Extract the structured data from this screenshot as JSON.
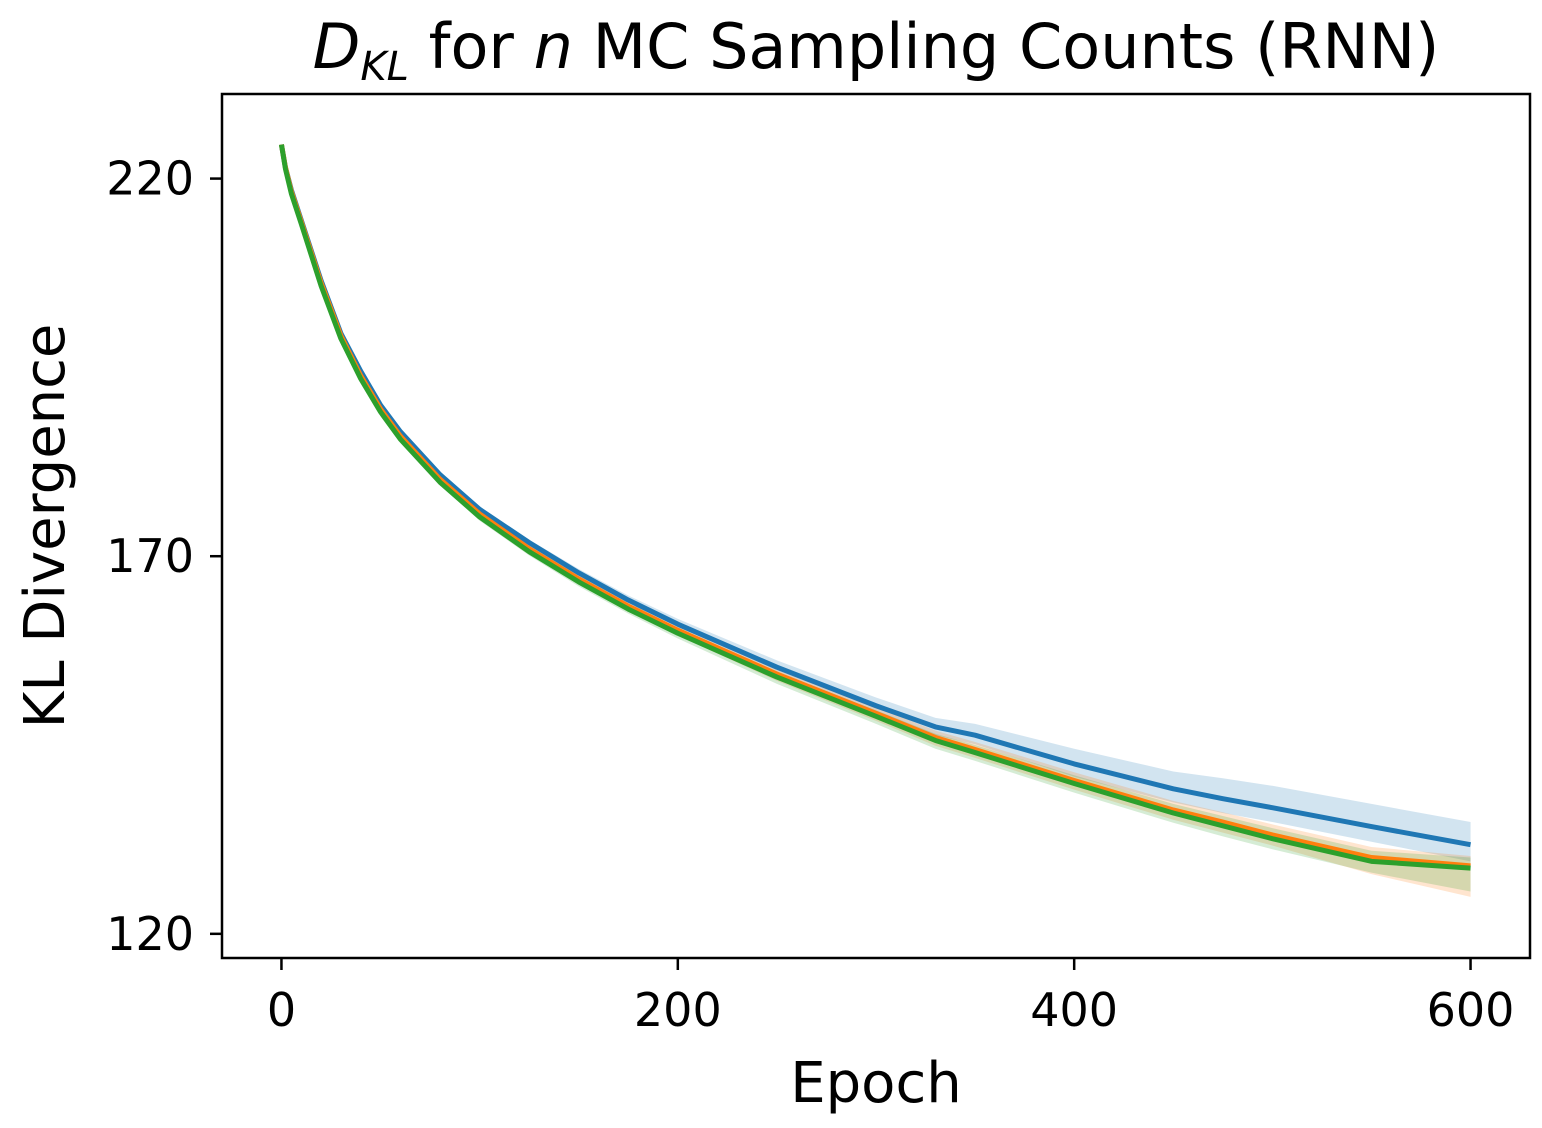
{
  "chart_data": {
    "type": "line",
    "title": {
      "d_symbol": "D",
      "d_subscript": "KL",
      "part_for": " for ",
      "n_symbol": "n",
      "part_rest": " MC Sampling Counts (RNN)"
    },
    "xlabel": "Epoch",
    "ylabel": "KL Divergence",
    "xlim": [
      -30,
      630
    ],
    "ylim": [
      116.8,
      231.2
    ],
    "xticks": [
      0,
      200,
      400,
      600
    ],
    "yticks": [
      120,
      170,
      220
    ],
    "grid": false,
    "legend": "none",
    "series": [
      {
        "color": "#1f77b4",
        "band_opacity": 0.2,
        "x": [
          0,
          2,
          5,
          10,
          20,
          30,
          40,
          50,
          60,
          80,
          100,
          125,
          150,
          175,
          200,
          250,
          300,
          330,
          350,
          400,
          450,
          475,
          500,
          550,
          600
        ],
        "y": [
          224.5,
          221.5,
          218.5,
          214.5,
          206.5,
          199.5,
          194.5,
          190.0,
          186.5,
          180.8,
          176.2,
          171.8,
          167.8,
          164.2,
          161.0,
          155.3,
          150.2,
          147.4,
          146.3,
          142.5,
          139.2,
          137.9,
          136.7,
          134.2,
          131.8
        ],
        "upper": [
          224.7,
          221.7,
          218.8,
          214.8,
          206.8,
          199.8,
          194.8,
          190.3,
          186.8,
          181.2,
          176.6,
          172.2,
          168.3,
          164.8,
          161.7,
          156.2,
          151.3,
          148.6,
          147.8,
          144.5,
          141.5,
          140.6,
          139.6,
          137.2,
          134.8
        ],
        "lower": [
          224.3,
          221.3,
          218.2,
          214.2,
          206.2,
          199.2,
          194.2,
          189.7,
          186.2,
          180.4,
          175.8,
          171.3,
          167.3,
          163.6,
          160.3,
          154.4,
          149.1,
          146.3,
          145.1,
          140.8,
          137.4,
          136.0,
          134.8,
          132.2,
          129.6
        ]
      },
      {
        "color": "#ff7f0e",
        "band_opacity": 0.2,
        "x": [
          0,
          2,
          5,
          10,
          20,
          30,
          40,
          50,
          60,
          80,
          100,
          125,
          150,
          175,
          200,
          250,
          300,
          330,
          350,
          400,
          450,
          475,
          500,
          550,
          600
        ],
        "y": [
          224.5,
          221.5,
          218.3,
          214.3,
          206.2,
          199.2,
          193.9,
          189.5,
          185.9,
          180.2,
          175.6,
          171.0,
          167.0,
          163.4,
          160.2,
          154.4,
          149.2,
          146.0,
          144.4,
          140.3,
          136.4,
          134.8,
          133.1,
          130.1,
          129.0
        ],
        "upper": [
          224.7,
          221.7,
          218.5,
          214.6,
          206.5,
          199.5,
          194.2,
          189.8,
          186.3,
          180.6,
          176.0,
          171.4,
          167.5,
          163.9,
          160.8,
          155.1,
          150.0,
          146.9,
          145.4,
          141.4,
          137.6,
          136.1,
          134.5,
          131.5,
          130.3
        ],
        "lower": [
          224.3,
          221.3,
          218.1,
          214.0,
          205.9,
          198.9,
          193.6,
          189.2,
          185.5,
          179.8,
          175.1,
          170.5,
          166.4,
          162.8,
          159.5,
          153.5,
          148.2,
          144.9,
          143.3,
          139.1,
          135.1,
          133.4,
          131.7,
          127.9,
          124.9
        ]
      },
      {
        "color": "#2ca02c",
        "band_opacity": 0.2,
        "x": [
          0,
          2,
          5,
          10,
          20,
          30,
          40,
          50,
          60,
          80,
          100,
          125,
          150,
          175,
          200,
          250,
          300,
          330,
          350,
          400,
          450,
          475,
          500,
          550,
          600
        ],
        "y": [
          224.5,
          221.3,
          218.0,
          214.0,
          205.8,
          198.8,
          193.5,
          189.1,
          185.5,
          179.8,
          175.2,
          170.6,
          166.6,
          163.0,
          159.8,
          154.0,
          148.8,
          145.6,
          144.0,
          139.9,
          136.0,
          134.3,
          132.6,
          129.6,
          128.7
        ],
        "upper": [
          224.7,
          221.5,
          218.2,
          214.3,
          206.1,
          199.1,
          193.8,
          189.4,
          185.9,
          180.2,
          175.6,
          171.0,
          167.1,
          163.5,
          160.4,
          154.7,
          149.6,
          146.5,
          145.0,
          141.0,
          137.2,
          135.6,
          134.0,
          131.0,
          130.1
        ],
        "lower": [
          224.3,
          221.1,
          217.8,
          213.7,
          205.5,
          198.5,
          193.2,
          188.8,
          185.1,
          179.4,
          174.7,
          170.1,
          166.0,
          162.4,
          159.1,
          153.1,
          147.8,
          144.5,
          142.9,
          138.7,
          134.7,
          132.9,
          131.2,
          128.1,
          125.6
        ]
      }
    ]
  }
}
